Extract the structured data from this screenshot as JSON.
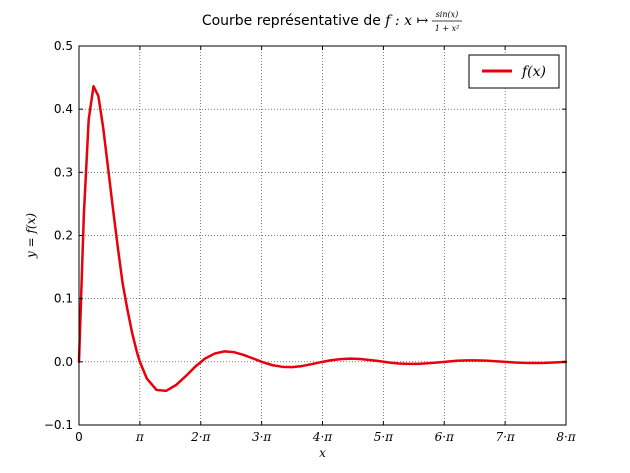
{
  "chart_data": {
    "type": "line",
    "title_prefix": "Courbe représentative de ",
    "title_func": "f : x ↦ ",
    "title_numerator": "sin(x)",
    "title_denominator": "1 + x²",
    "xlabel": "x",
    "ylabel": "y = f(x)",
    "legend": {
      "label": "f(x)",
      "placement": "top-right"
    },
    "grid": true,
    "xlim": [
      0,
      25.1327
    ],
    "ylim": [
      -0.1,
      0.5
    ],
    "x_ticks": [
      {
        "value": 0,
        "label": "0"
      },
      {
        "value": 3.14159,
        "label": "π"
      },
      {
        "value": 6.28319,
        "label": "2·π"
      },
      {
        "value": 9.42478,
        "label": "3·π"
      },
      {
        "value": 12.56637,
        "label": "4·π"
      },
      {
        "value": 15.70796,
        "label": "5·π"
      },
      {
        "value": 18.84956,
        "label": "6·π"
      },
      {
        "value": 21.99115,
        "label": "7·π"
      },
      {
        "value": 25.13274,
        "label": "8·π"
      }
    ],
    "y_ticks": [
      {
        "value": -0.1,
        "label": "−0.1"
      },
      {
        "value": 0.0,
        "label": "0.0"
      },
      {
        "value": 0.1,
        "label": "0.1"
      },
      {
        "value": 0.2,
        "label": "0.2"
      },
      {
        "value": 0.3,
        "label": "0.3"
      },
      {
        "value": 0.4,
        "label": "0.4"
      },
      {
        "value": 0.5,
        "label": "0.5"
      }
    ],
    "series": [
      {
        "name": "f(x)",
        "color": "#e8000b",
        "x": [
          0,
          0.25,
          0.5,
          0.75,
          1.0,
          1.25,
          1.5,
          1.75,
          2.0,
          2.25,
          2.5,
          2.75,
          3.0,
          3.14,
          3.5,
          4.0,
          4.5,
          5.0,
          5.5,
          6.0,
          6.5,
          7.0,
          7.5,
          8.0,
          8.5,
          9.0,
          9.5,
          10.0,
          10.5,
          11.0,
          11.5,
          12.0,
          12.5,
          13.0,
          13.5,
          14.0,
          14.5,
          15.0,
          15.5,
          16.0,
          16.5,
          17.0,
          17.5,
          18.0,
          18.5,
          19.0,
          19.5,
          20.0,
          20.5,
          21.0,
          21.5,
          22.0,
          22.5,
          23.0,
          23.5,
          24.0,
          24.5,
          25.13
        ],
        "y": [
          0,
          0.2328,
          0.3835,
          0.4363,
          0.4207,
          0.3703,
          0.3069,
          0.2431,
          0.1819,
          0.1246,
          0.0824,
          0.0447,
          0.0141,
          0.0002,
          -0.0264,
          -0.0445,
          -0.0459,
          -0.0369,
          -0.023,
          -0.0076,
          0.0051,
          0.0131,
          0.0166,
          0.0153,
          0.0109,
          0.0051,
          -0.0008,
          -0.0054,
          -0.0079,
          -0.0083,
          -0.0067,
          -0.0037,
          -0.0004,
          0.0025,
          0.0043,
          0.005,
          0.0045,
          0.0029,
          0.0011,
          -0.0011,
          -0.0026,
          -0.0033,
          -0.0032,
          -0.0023,
          -0.001,
          0.0004,
          0.0017,
          0.0023,
          0.0024,
          0.0019,
          0.001,
          -0.0,
          -0.001,
          -0.0016,
          -0.0018,
          -0.0016,
          -0.001,
          0.0
        ]
      }
    ]
  }
}
